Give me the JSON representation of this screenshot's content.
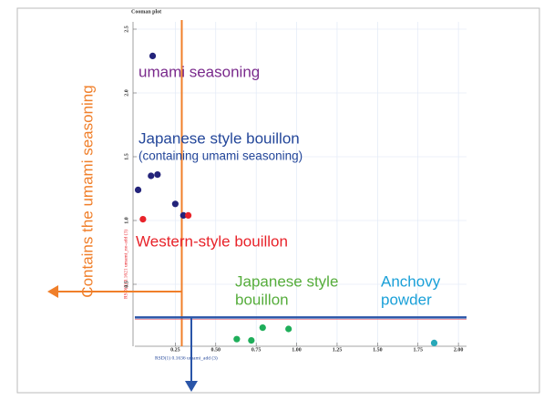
{
  "chart_data": {
    "type": "scatter",
    "title": "Cooman plot",
    "x_label": "RSD(1) 0.1636 umami_add (3)",
    "y_label": "RSD(2) 0.1621 umami_no-add (3)",
    "xlim": [
      0,
      2.05
    ],
    "ylim": [
      0,
      2.5
    ],
    "xticks": [
      0.25,
      {
        "value": 0.5,
        "label": "0.50"
      },
      0.75,
      {
        "value": 1,
        "label": "1.00"
      },
      1.25,
      {
        "value": 1.5,
        "label": "1.50"
      },
      1.75,
      {
        "value": 2,
        "label": "2.00"
      }
    ],
    "yticks": [
      0.5,
      {
        "value": 1,
        "label": "1.0"
      },
      1.5,
      {
        "value": 2,
        "label": "2.0"
      },
      2.5
    ],
    "grid": true,
    "threshold_x": 0.29,
    "threshold_y": 0.24,
    "threshold_x_color": "#f07f2a",
    "threshold_y_color": "#2a55a8",
    "series": [
      {
        "color": "#23237a",
        "x": [
          0.11,
          0.02,
          0.1,
          0.14,
          0.25,
          0.3
        ],
        "values": [
          2.29,
          1.24,
          1.35,
          1.36,
          1.13,
          1.04
        ]
      },
      {
        "color": "#e8232a",
        "x": [
          0.05,
          0.33
        ],
        "values": [
          1.01,
          1.04
        ]
      },
      {
        "color": "#1fae5a",
        "x": [
          0.63,
          0.72,
          0.79,
          0.95
        ],
        "values": [
          0.07,
          0.06,
          0.16,
          0.15
        ]
      },
      {
        "color": "#27a8b8",
        "x": [
          1.85
        ],
        "values": [
          0.04
        ]
      }
    ],
    "annotations": [
      {
        "lines": [
          "umami seasoning"
        ],
        "color": "#7a2a8c"
      },
      {
        "lines": [
          "Japanese style bouillon",
          "(containing umami seasoning)"
        ],
        "color": "#24479a"
      },
      {
        "lines": [
          "Western-style bouillon"
        ],
        "color": "#e8232a"
      },
      {
        "lines": [
          "Japanese style",
          "bouillon"
        ],
        "color": "#56ad3c"
      },
      {
        "lines": [
          "Anchovy",
          "powder"
        ],
        "color": "#1aa0d8"
      },
      {
        "lines": [
          "Contains the umami seasoning"
        ],
        "color": "#f07f2a"
      }
    ]
  }
}
